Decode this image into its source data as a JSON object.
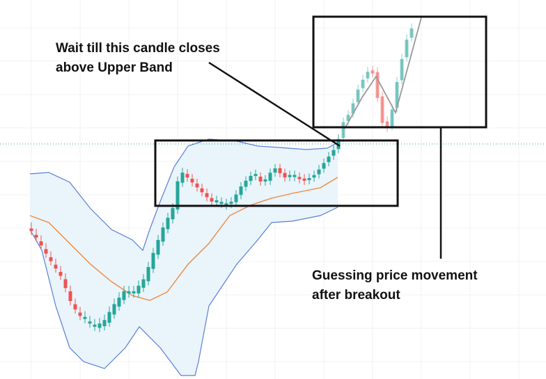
{
  "annotations": [
    {
      "lines": [
        "Wait till this candle closes",
        "above Upper Band"
      ]
    },
    {
      "lines": [
        "Guessing price movement",
        "after breakout"
      ]
    }
  ]
}
